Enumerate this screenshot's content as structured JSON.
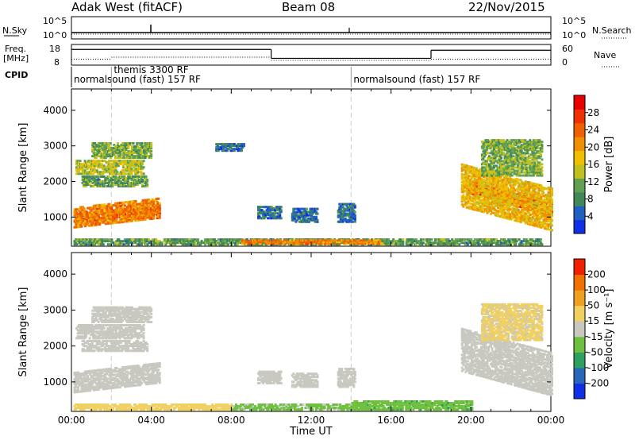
{
  "header": {
    "station": "Adak West (fitACF)",
    "beam": "Beam 08",
    "date": "22/Nov/2015"
  },
  "top_panels": {
    "nsky_label": "N.Sky",
    "nsearch_label": "N.Search",
    "freq_label_line1": "Freq.",
    "freq_label_line2": "[MHz]",
    "nave_label": "Nave",
    "cpid_label": "CPID",
    "nsky_ticks": [
      "10^5",
      "10^0"
    ],
    "nsearch_ticks": [
      "10^5",
      "10^0"
    ],
    "freq_ticks": [
      "18",
      "8"
    ],
    "nave_ticks": [
      "60",
      "0"
    ],
    "cpid_events": [
      {
        "label": "normalsound (fast) 157 RF",
        "start_hour": 0
      },
      {
        "label": "themis 3300 RF",
        "start_hour": 2
      },
      {
        "label": "normalsound (fast) 157 RF",
        "start_hour": 14
      }
    ],
    "freq_segments": [
      {
        "x0": 0,
        "x1": 10,
        "level": 15.6
      },
      {
        "x0": 10,
        "x1": 18,
        "level": 11.3
      },
      {
        "x0": 18,
        "x1": 24,
        "level": 15.2
      }
    ],
    "nave_segments": [
      {
        "x0": 0,
        "x1": 2,
        "level": 17
      },
      {
        "x0": 2,
        "x1": 10,
        "level": 23
      },
      {
        "x0": 10,
        "x1": 18,
        "level": 14
      },
      {
        "x0": 18,
        "x1": 24,
        "level": 17
      }
    ]
  },
  "chart_data": [
    {
      "type": "heatmap",
      "ylabel": "Slant Range [km]",
      "ylim": [
        180,
        4600
      ],
      "yticks": [
        "1000",
        "2000",
        "3000",
        "4000"
      ],
      "xlim": [
        0,
        24
      ],
      "colorbar": {
        "label": "Power [dB]",
        "ticks": [
          "28",
          "24",
          "20",
          "16",
          "12",
          "8",
          "4"
        ],
        "range": [
          0,
          32
        ],
        "colors": [
          "#1030e8",
          "#2060c0",
          "#408858",
          "#60a050",
          "#c0c020",
          "#f0c000",
          "#f09000",
          "#f06000",
          "#f03000",
          "#e80000"
        ]
      },
      "regions": [
        {
          "t0": 0.1,
          "t1": 4.4,
          "r0": 1000,
          "r1": 1250,
          "slope": 250,
          "level": 28
        },
        {
          "t0": 0.1,
          "t1": 4.4,
          "r0": 880,
          "r1": 1450,
          "slope": 250,
          "level": 22
        },
        {
          "t0": 0.2,
          "t1": 3.6,
          "r0": 2250,
          "r1": 2650,
          "slope": 0,
          "level": 14
        },
        {
          "t0": 0.5,
          "t1": 3.8,
          "r0": 1900,
          "r1": 2200,
          "slope": 0,
          "level": 10
        },
        {
          "t0": 1.0,
          "t1": 4.0,
          "r0": 2700,
          "r1": 3150,
          "slope": 0,
          "level": 12
        },
        {
          "t0": 7.2,
          "t1": 8.6,
          "r0": 2900,
          "r1": 3100,
          "slope": 0,
          "level": 6
        },
        {
          "t0": 9.3,
          "t1": 10.5,
          "r0": 1000,
          "r1": 1350,
          "slope": 0,
          "level": 6
        },
        {
          "t0": 11.0,
          "t1": 12.3,
          "r0": 900,
          "r1": 1300,
          "slope": 0,
          "level": 6
        },
        {
          "t0": 13.3,
          "t1": 14.2,
          "r0": 900,
          "r1": 1400,
          "slope": 0,
          "level": 6
        },
        {
          "t0": 0.1,
          "t1": 23.5,
          "r0": 220,
          "r1": 420,
          "slope": 0,
          "level": 10
        },
        {
          "t0": 8.5,
          "t1": 15.5,
          "r0": 240,
          "r1": 400,
          "slope": 0,
          "level": 22
        },
        {
          "t0": 19.8,
          "t1": 24.0,
          "r0": 1400,
          "r1": 1750,
          "slope": -600,
          "level": 27
        },
        {
          "t0": 19.5,
          "t1": 24.0,
          "r0": 1000,
          "r1": 2200,
          "slope": -600,
          "level": 18
        },
        {
          "t0": 20.5,
          "t1": 23.5,
          "r0": 2200,
          "r1": 3200,
          "slope": 0,
          "level": 12
        }
      ]
    },
    {
      "type": "heatmap",
      "ylabel": "Slant Range [km]",
      "ylim": [
        180,
        4600
      ],
      "yticks": [
        "1000",
        "2000",
        "3000",
        "4000"
      ],
      "xlim": [
        0,
        24
      ],
      "xticks": [
        "00:00",
        "04:00",
        "08:00",
        "12:00",
        "16:00",
        "20:00",
        "00:00"
      ],
      "xlabel": "Time UT",
      "colorbar": {
        "label": "Velocity [m s⁻¹]",
        "ticks": [
          "200",
          "100",
          "50",
          "15",
          "-15",
          "-50",
          "-100",
          "-200"
        ],
        "range": [
          -250,
          250
        ],
        "colors": [
          "#1030e8",
          "#2868b8",
          "#30a060",
          "#70c040",
          "#c8c8c0",
          "#f0d060",
          "#f0a020",
          "#f07000",
          "#f02000"
        ]
      },
      "regions": [
        {
          "t0": 0.1,
          "t1": 4.4,
          "r0": 880,
          "r1": 1450,
          "slope": 250,
          "level": 0
        },
        {
          "t0": 0.2,
          "t1": 3.6,
          "r0": 2250,
          "r1": 2650,
          "slope": 0,
          "level": 0
        },
        {
          "t0": 0.5,
          "t1": 3.8,
          "r0": 1900,
          "r1": 2200,
          "slope": 0,
          "level": 0
        },
        {
          "t0": 1.0,
          "t1": 4.0,
          "r0": 2700,
          "r1": 3150,
          "slope": 0,
          "level": 0
        },
        {
          "t0": 9.3,
          "t1": 10.5,
          "r0": 1000,
          "r1": 1350,
          "slope": 0,
          "level": 0
        },
        {
          "t0": 11.0,
          "t1": 12.3,
          "r0": 900,
          "r1": 1300,
          "slope": 0,
          "level": 0
        },
        {
          "t0": 13.3,
          "t1": 14.2,
          "r0": 900,
          "r1": 1400,
          "slope": 0,
          "level": 0
        },
        {
          "t0": 0.1,
          "t1": 8.0,
          "r0": 220,
          "r1": 420,
          "slope": 0,
          "level": 40
        },
        {
          "t0": 8.0,
          "t1": 14.0,
          "r0": 220,
          "r1": 420,
          "slope": 0,
          "level": -30
        },
        {
          "t0": 14.0,
          "t1": 20.0,
          "r0": 220,
          "r1": 500,
          "slope": 0,
          "level": -80
        },
        {
          "t0": 19.5,
          "t1": 24.0,
          "r0": 1000,
          "r1": 2200,
          "slope": -600,
          "level": 0
        },
        {
          "t0": 20.5,
          "t1": 23.5,
          "r0": 2200,
          "r1": 3200,
          "slope": 0,
          "level": 30
        }
      ]
    }
  ]
}
